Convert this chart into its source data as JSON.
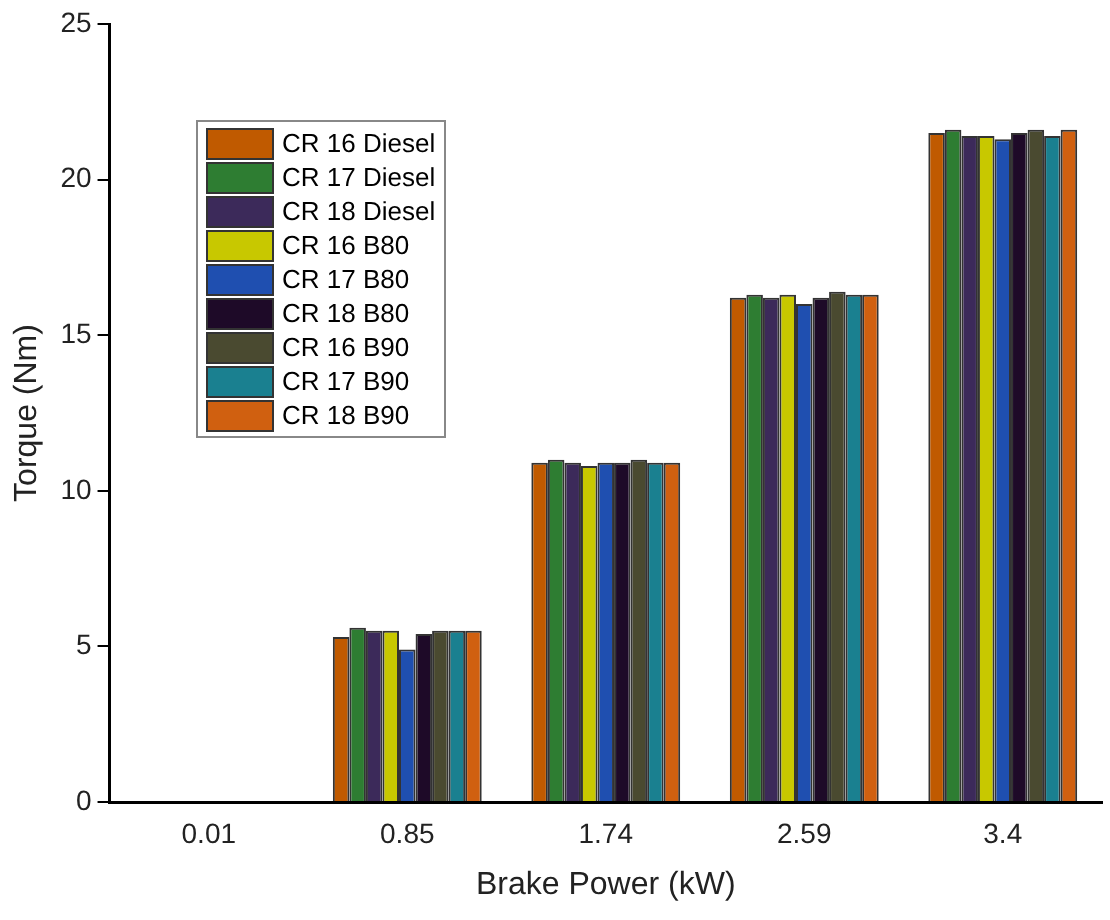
{
  "chart_data": {
    "type": "bar",
    "xlabel": "Brake Power (kW)",
    "ylabel": "Torque (Nm)",
    "categories": [
      "0.01",
      "0.85",
      "1.74",
      "2.59",
      "3.4"
    ],
    "ylim": [
      0,
      25
    ],
    "yticks": [
      0,
      5,
      10,
      15,
      20,
      25
    ],
    "grid": false,
    "legend": "top left",
    "series": [
      {
        "name": "CR 16 Diesel",
        "color": "#c05a00",
        "values": [
          0,
          5.3,
          10.9,
          16.2,
          21.5
        ]
      },
      {
        "name": "CR 17 Diesel",
        "color": "#2e7d32",
        "values": [
          0,
          5.6,
          11.0,
          16.3,
          21.6
        ]
      },
      {
        "name": "CR 18 Diesel",
        "color": "#3c2a5a",
        "values": [
          0,
          5.5,
          10.9,
          16.2,
          21.4
        ]
      },
      {
        "name": "CR 16 B80",
        "color": "#c8c800",
        "values": [
          0,
          5.5,
          10.8,
          16.3,
          21.4
        ]
      },
      {
        "name": "CR 17 B80",
        "color": "#1f4fb0",
        "values": [
          0,
          4.9,
          10.9,
          16.0,
          21.3
        ]
      },
      {
        "name": "CR 18 B80",
        "color": "#1e0a28",
        "values": [
          0,
          5.4,
          10.9,
          16.2,
          21.5
        ]
      },
      {
        "name": "CR 16 B90",
        "color": "#4a4a30",
        "values": [
          0,
          5.5,
          11.0,
          16.4,
          21.6
        ]
      },
      {
        "name": "CR 17 B90",
        "color": "#1a8090",
        "values": [
          0,
          5.5,
          10.9,
          16.3,
          21.4
        ]
      },
      {
        "name": "CR 18 B90",
        "color": "#d06010",
        "values": [
          0,
          5.5,
          10.9,
          16.3,
          21.6
        ]
      }
    ]
  }
}
